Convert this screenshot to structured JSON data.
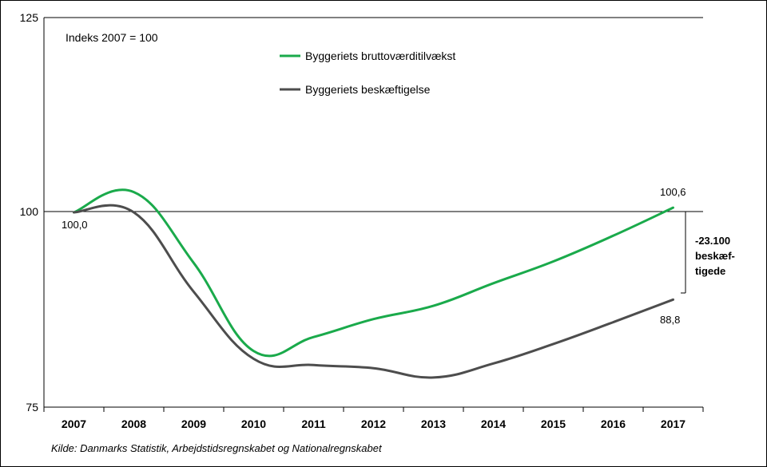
{
  "chart_data": {
    "type": "line",
    "subtitle": "Indeks 2007 = 100",
    "categories": [
      "2007",
      "2008",
      "2009",
      "2010",
      "2011",
      "2012",
      "2013",
      "2014",
      "2015",
      "2016",
      "2017"
    ],
    "ylim": [
      75,
      125
    ],
    "yticks": [
      "75",
      "100",
      "125"
    ],
    "reference_line": 100,
    "grid": false,
    "legend_position": "top-center",
    "series": [
      {
        "name": "Byggeriets bruttoværditilvækst",
        "color": "#1aaa4b",
        "values": [
          100.0,
          102.6,
          93.5,
          82.2,
          84.0,
          86.3,
          88.0,
          90.9,
          93.7,
          97.0,
          100.6
        ]
      },
      {
        "name": "Byggeriets beskæftigelse",
        "color": "#4d4d4d",
        "values": [
          100.0,
          100.0,
          89.8,
          81.2,
          80.4,
          80.0,
          78.8,
          80.6,
          83.1,
          85.9,
          88.8
        ]
      }
    ],
    "annotations": {
      "start_label": "100,0",
      "green_end_label": "100,6",
      "grey_end_label": "88,8",
      "gap_line1": "-23.100",
      "gap_line2": "beskæf-",
      "gap_line3": "tigede"
    },
    "source": "Kilde:  Danmarks Statistik,  Arbejdstidsregnskabet og Nationalregnskabet"
  }
}
